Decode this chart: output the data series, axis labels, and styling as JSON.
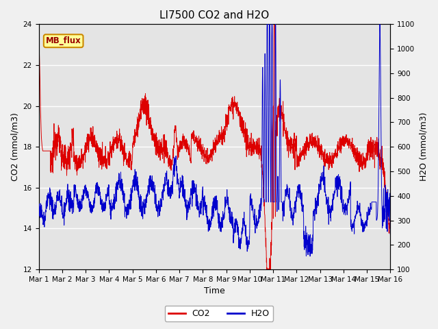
{
  "title": "LI7500 CO2 and H2O",
  "xlabel": "Time",
  "ylabel_left": "CO2 (mmol/m3)",
  "ylabel_right": "H2O (mmol/m3)",
  "ylim_left": [
    12,
    24
  ],
  "ylim_right": [
    100,
    1100
  ],
  "co2_color": "#dd0000",
  "h2o_color": "#0000cc",
  "background_color": "#f0f0f0",
  "plot_bg_color": "#e4e4e4",
  "grid_color": "#ffffff",
  "annotation_text": "MB_flux",
  "annotation_bg": "#ffff99",
  "annotation_border": "#cc8800",
  "legend_co2": "CO2",
  "legend_h2o": "H2O",
  "xtick_labels": [
    "Mar 1",
    "Mar 2",
    "Mar 3",
    "Mar 4",
    "Mar 5",
    "Mar 6",
    "Mar 7",
    "Mar 8",
    "Mar 9",
    "Mar 10",
    "Mar 11",
    "Mar 12",
    "Mar 13",
    "Mar 14",
    "Mar 15",
    "Mar 16"
  ],
  "title_fontsize": 11,
  "axis_fontsize": 9,
  "tick_fontsize": 7.5
}
